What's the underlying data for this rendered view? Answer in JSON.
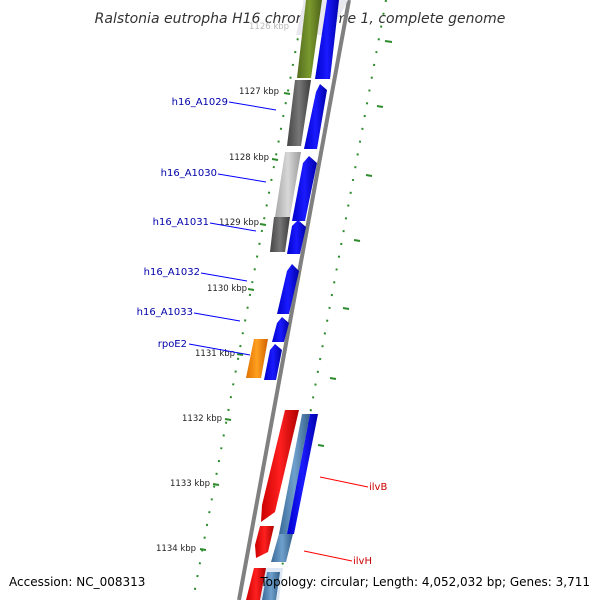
{
  "title": "Ralstonia eutropha H16 chromosome 1, complete genome",
  "footer": {
    "accession": "Accession: NC_008313",
    "topology": "Topology: circular; Length: 4,052,032 bp; Genes: 3,711"
  },
  "ruler": {
    "top_label": "1126 kbp",
    "labels": [
      "1127 kbp",
      "1128 kbp",
      "1129 kbp",
      "1130 kbp",
      "1131 kbp",
      "1132 kbp",
      "1133 kbp",
      "1134 kbp"
    ]
  },
  "genes": [
    {
      "name": "h16_A1029",
      "color": "#0000aa"
    },
    {
      "name": "h16_A1030",
      "color": "#0000aa"
    },
    {
      "name": "h16_A1031",
      "color": "#0000aa"
    },
    {
      "name": "h16_A1032",
      "color": "#0000aa"
    },
    {
      "name": "h16_A1033",
      "color": "#0000aa"
    },
    {
      "name": "rpoE2",
      "color": "#0000aa"
    },
    {
      "name": "ilvB",
      "color": "#cc0000"
    },
    {
      "name": "ilvH",
      "color": "#cc0000"
    }
  ],
  "colors": {
    "cds": "#0000ff",
    "cog_green": "#6b8e23",
    "cog_dark_gray": "#666666",
    "cog_light_gray": "#c0c0c0",
    "cog_orange": "#ff8c00",
    "cog_red": "#ff0000",
    "cog_steelblue": "#4682b4",
    "backbone": "#808080",
    "gc_dots": "#2e8b2e"
  }
}
